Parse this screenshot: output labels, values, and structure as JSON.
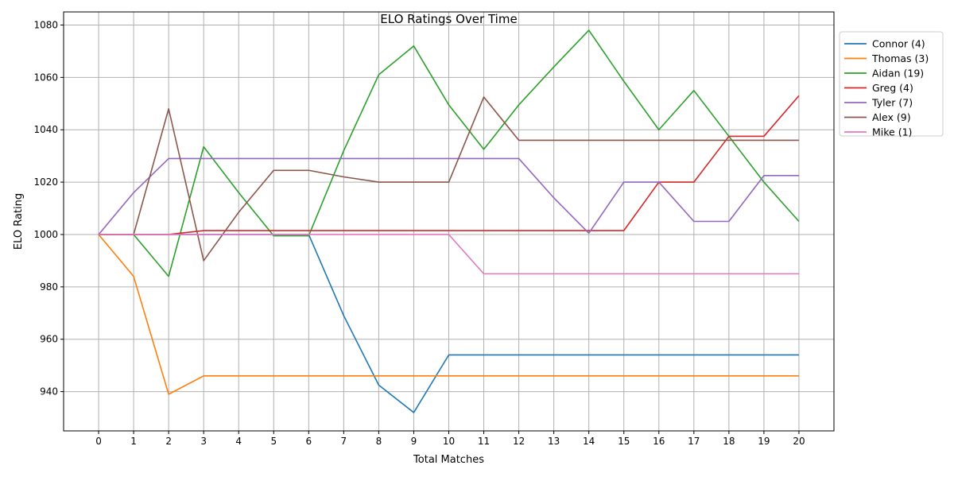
{
  "chart_data": {
    "type": "line",
    "title": "ELO Ratings Over Time",
    "xlabel": "Total Matches",
    "ylabel": "ELO Rating",
    "xlim": [
      -1,
      21
    ],
    "ylim": [
      925,
      1085
    ],
    "x": [
      0,
      1,
      2,
      3,
      4,
      5,
      6,
      7,
      8,
      9,
      10,
      11,
      12,
      13,
      14,
      15,
      16,
      17,
      18,
      19,
      20
    ],
    "x_ticks": [
      "0",
      "1",
      "2",
      "3",
      "4",
      "5",
      "6",
      "7",
      "8",
      "9",
      "10",
      "11",
      "12",
      "13",
      "14",
      "15",
      "16",
      "17",
      "18",
      "19",
      "20"
    ],
    "y_ticks": [
      940,
      960,
      980,
      1000,
      1020,
      1040,
      1060,
      1080
    ],
    "y_tick_labels": [
      "940",
      "960",
      "980",
      "1000",
      "1020",
      "1040",
      "1060",
      "1080"
    ],
    "grid": true,
    "legend_position": "outside-top-right",
    "series": [
      {
        "name": "Connor (4)",
        "color": "#1f77b4",
        "values": [
          1000,
          1000,
          1000,
          1000,
          1000,
          1000,
          1000,
          969,
          942.5,
          932,
          954,
          954,
          954,
          954,
          954,
          954,
          954,
          954,
          954,
          954,
          954
        ]
      },
      {
        "name": "Thomas (3)",
        "color": "#ff7f0e",
        "values": [
          1000,
          984,
          939,
          946,
          946,
          946,
          946,
          946,
          946,
          946,
          946,
          946,
          946,
          946,
          946,
          946,
          946,
          946,
          946,
          946,
          946
        ]
      },
      {
        "name": "Aidan (19)",
        "color": "#2ca02c",
        "values": [
          1000,
          1000,
          984,
          1033.5,
          1016,
          999.5,
          999.5,
          1032,
          1061,
          1072,
          1049.5,
          1032.5,
          1049.5,
          1064,
          1078,
          1058.5,
          1040,
          1055,
          1037.5,
          1020,
          1005
        ]
      },
      {
        "name": "Greg (4)",
        "color": "#d62728",
        "values": [
          1000,
          1000,
          1000,
          1001.5,
          1001.5,
          1001.5,
          1001.5,
          1001.5,
          1001.5,
          1001.5,
          1001.5,
          1001.5,
          1001.5,
          1001.5,
          1001.5,
          1001.5,
          1020,
          1020,
          1037.5,
          1037.5,
          1053
        ]
      },
      {
        "name": "Tyler (7)",
        "color": "#9467bd",
        "values": [
          1000,
          1016,
          1029,
          1029,
          1029,
          1029,
          1029,
          1029,
          1029,
          1029,
          1029,
          1029,
          1029,
          1014,
          1000.5,
          1020,
          1020,
          1005,
          1005,
          1022.5,
          1022.5
        ]
      },
      {
        "name": "Alex (9)",
        "color": "#8c564b",
        "values": [
          1000,
          1000,
          1048,
          990,
          1008.5,
          1024.5,
          1024.5,
          1022,
          1020,
          1020,
          1020,
          1052.5,
          1036,
          1036,
          1036,
          1036,
          1036,
          1036,
          1036,
          1036,
          1036
        ]
      },
      {
        "name": "Mike (1)",
        "color": "#e377c2",
        "values": [
          1000,
          1000,
          1000,
          1000,
          1000,
          1000,
          1000,
          1000,
          1000,
          1000,
          1000,
          985,
          985,
          985,
          985,
          985,
          985,
          985,
          985,
          985,
          985
        ]
      }
    ]
  }
}
